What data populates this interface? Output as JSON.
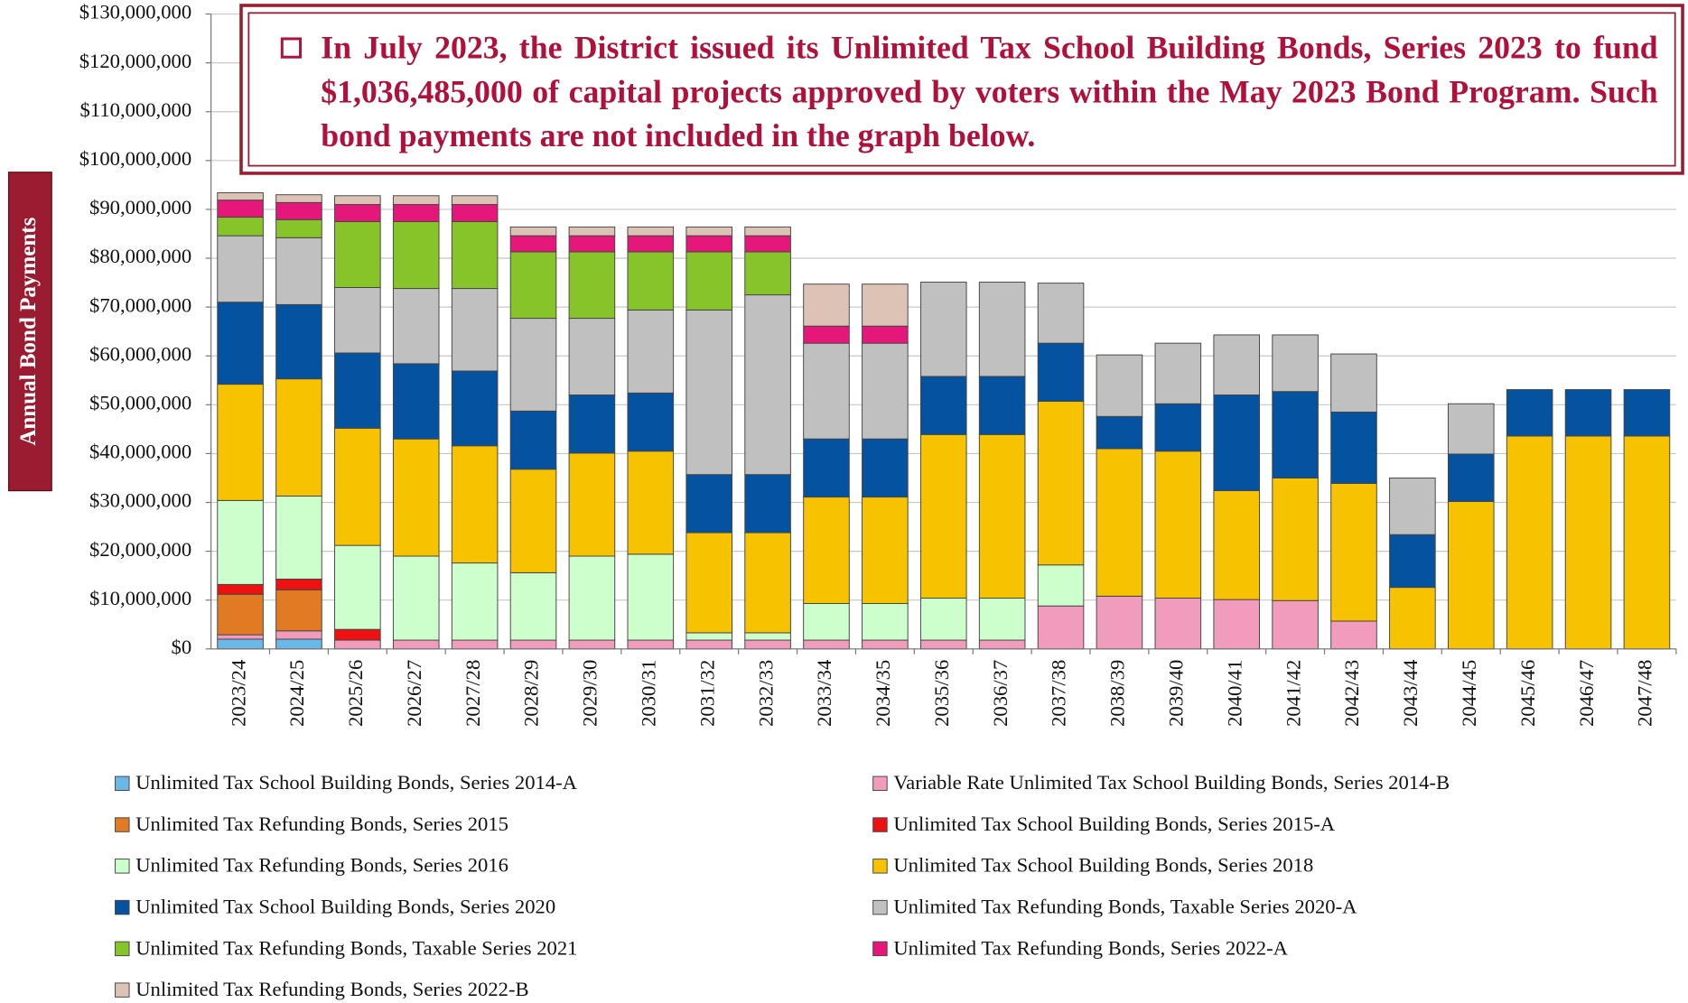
{
  "chart_data": {
    "type": "stacked_bar",
    "y_label": "Annual Bond Payments",
    "annotation": "In July 2023, the District issued its Unlimited Tax School Building Bonds, Series 2023 to fund $1,036,485,000 of capital projects approved by voters within the May 2023 Bond Program. Such bond payments are not included in the graph below.",
    "categories": [
      "2023/24",
      "2024/25",
      "2025/26",
      "2026/27",
      "2027/28",
      "2028/29",
      "2029/30",
      "2030/31",
      "2031/32",
      "2032/33",
      "2033/34",
      "2034/35",
      "2035/36",
      "2036/37",
      "2037/38",
      "2038/39",
      "2039/40",
      "2040/41",
      "2041/42",
      "2042/43",
      "2043/44",
      "2044/45",
      "2045/46",
      "2046/47",
      "2047/48"
    ],
    "ylim": [
      0,
      130000000
    ],
    "yticks": [
      {
        "value": 0,
        "label": "$0"
      },
      {
        "value": 10000000,
        "label": "$10,000,000"
      },
      {
        "value": 20000000,
        "label": "$20,000,000"
      },
      {
        "value": 30000000,
        "label": "$30,000,000"
      },
      {
        "value": 40000000,
        "label": "$40,000,000"
      },
      {
        "value": 50000000,
        "label": "$50,000,000"
      },
      {
        "value": 60000000,
        "label": "$60,000,000"
      },
      {
        "value": 70000000,
        "label": "$70,000,000"
      },
      {
        "value": 80000000,
        "label": "$80,000,000"
      },
      {
        "value": 90000000,
        "label": "$90,000,000"
      },
      {
        "value": 100000000,
        "label": "$100,000,000"
      },
      {
        "value": 110000000,
        "label": "$110,000,000"
      },
      {
        "value": 120000000,
        "label": "$120,000,000"
      },
      {
        "value": 130000000,
        "label": "$130,000,000"
      }
    ],
    "grid": true,
    "series": [
      {
        "name": "Unlimited Tax School Building Bonds, Series 2014-A",
        "color": "#6ab7e8",
        "values": [
          2000000,
          2000000,
          null,
          null,
          null,
          null,
          null,
          null,
          null,
          null,
          null,
          null,
          null,
          null,
          null,
          null,
          null,
          null,
          null,
          null,
          null,
          null,
          null,
          null,
          null
        ]
      },
      {
        "name": "Variable Rate Unlimited Tax School Building Bonds, Series 2014-B",
        "color": "#f29cbd",
        "values": [
          900000,
          1700000,
          1800000,
          1800000,
          1800000,
          1800000,
          1800000,
          1800000,
          1800000,
          1800000,
          1800000,
          1800000,
          1800000,
          1800000,
          8800000,
          10800000,
          10400000,
          10100000,
          9900000,
          5700000,
          null,
          null,
          null,
          null,
          null
        ]
      },
      {
        "name": "Unlimited Tax Refunding Bonds, Series 2015",
        "color": "#e07b24",
        "values": [
          8300000,
          8400000,
          null,
          null,
          null,
          null,
          null,
          null,
          null,
          null,
          null,
          null,
          null,
          null,
          null,
          null,
          null,
          null,
          null,
          null,
          null,
          null,
          null,
          null,
          null
        ]
      },
      {
        "name": "Unlimited Tax School Building Bonds, Series 2015-A",
        "color": "#ee1111",
        "values": [
          2000000,
          2200000,
          2200000,
          null,
          null,
          null,
          null,
          null,
          null,
          null,
          null,
          null,
          null,
          null,
          null,
          null,
          null,
          null,
          null,
          null,
          null,
          null,
          null,
          null,
          null
        ]
      },
      {
        "name": "Unlimited Tax Refunding Bonds, Series 2016",
        "color": "#ccffcc",
        "values": [
          17200000,
          17000000,
          17200000,
          17200000,
          15800000,
          13800000,
          17200000,
          17600000,
          1500000,
          1500000,
          7500000,
          7500000,
          8600000,
          8600000,
          8400000,
          null,
          null,
          null,
          null,
          null,
          null,
          null,
          null,
          null,
          null
        ]
      },
      {
        "name": "Unlimited Tax School Building Bonds, Series 2018",
        "color": "#f7c200",
        "values": [
          23800000,
          24000000,
          24000000,
          24000000,
          24000000,
          21200000,
          21100000,
          21100000,
          20500000,
          20500000,
          21800000,
          21800000,
          33500000,
          33500000,
          33500000,
          30200000,
          30100000,
          22300000,
          25100000,
          28200000,
          12600000,
          30200000,
          43600000,
          43600000,
          43600000
        ]
      },
      {
        "name": "Unlimited Tax School Building Bonds, Series 2020",
        "color": "#0452a0",
        "values": [
          16800000,
          15200000,
          15400000,
          15400000,
          15300000,
          11900000,
          11900000,
          11900000,
          11900000,
          11900000,
          11900000,
          11900000,
          11900000,
          11900000,
          11900000,
          6600000,
          9700000,
          19600000,
          17700000,
          14600000,
          10800000,
          9700000,
          9500000,
          9500000,
          9500000
        ]
      },
      {
        "name": "Unlimited Tax Refunding Bonds, Taxable Series 2020-A",
        "color": "#c0c0c0",
        "values": [
          13600000,
          13700000,
          13400000,
          15400000,
          16900000,
          19000000,
          15700000,
          17000000,
          33700000,
          36800000,
          19600000,
          19600000,
          19300000,
          19300000,
          12300000,
          12600000,
          12400000,
          12300000,
          11600000,
          11900000,
          11600000,
          10300000,
          null,
          null,
          null
        ]
      },
      {
        "name": "Unlimited Tax Refunding Bonds, Taxable Series 2021",
        "color": "#86c42a",
        "values": [
          3800000,
          3700000,
          13500000,
          13700000,
          13700000,
          13600000,
          13600000,
          11900000,
          11900000,
          8800000,
          null,
          null,
          null,
          null,
          null,
          null,
          null,
          null,
          null,
          null,
          null,
          null,
          null,
          null,
          null
        ]
      },
      {
        "name": "Unlimited Tax Refunding Bonds, Series 2022-A",
        "color": "#e5177a",
        "values": [
          3500000,
          3500000,
          3500000,
          3500000,
          3500000,
          3300000,
          3300000,
          3300000,
          3300000,
          3300000,
          3500000,
          3500000,
          null,
          null,
          null,
          null,
          null,
          null,
          null,
          null,
          null,
          null,
          null,
          null,
          null
        ]
      },
      {
        "name": "Unlimited Tax Refunding Bonds, Series 2022-B",
        "color": "#dcc3b6",
        "values": [
          1500000,
          1600000,
          1800000,
          1800000,
          1800000,
          1800000,
          1800000,
          1800000,
          1800000,
          1800000,
          8600000,
          8600000,
          null,
          null,
          null,
          null,
          null,
          null,
          null,
          null,
          null,
          null,
          null,
          null,
          null
        ]
      }
    ]
  }
}
